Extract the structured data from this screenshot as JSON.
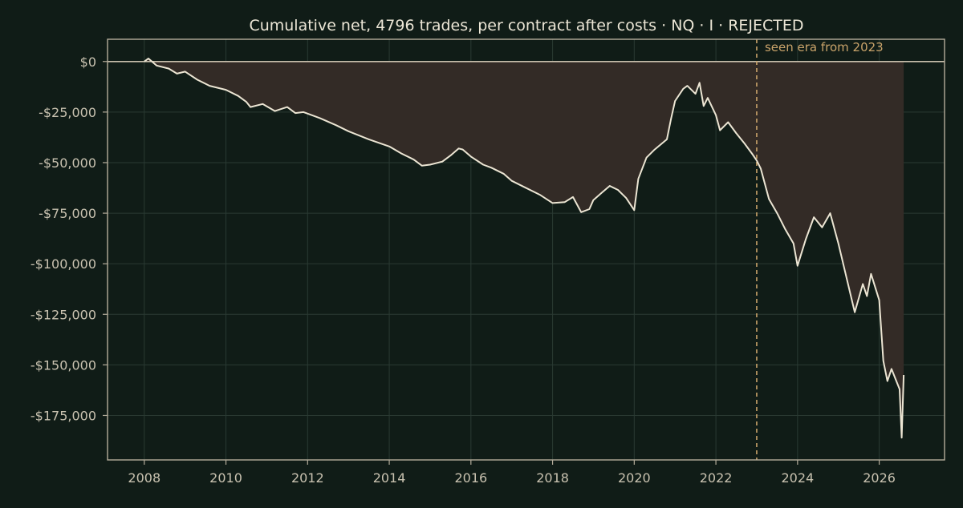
{
  "colors": {
    "background": "#101c17",
    "equity_line": "#ece5d3",
    "drawdown_fill": "#332b26",
    "era_marker": "#c9a36a",
    "grid": "#2a3a33"
  },
  "chart_data": {
    "type": "area",
    "title": "Cumulative net, 4796 trades, per contract after costs  ·  NQ · I · REJECTED",
    "xlabel": "",
    "ylabel": "",
    "x_unit": "year",
    "xlim": [
      2007.1,
      2027.6
    ],
    "ylim": [
      -197000,
      11000
    ],
    "x_ticks": [
      2008,
      2010,
      2012,
      2014,
      2016,
      2018,
      2020,
      2022,
      2024,
      2026
    ],
    "x_tick_labels": [
      "2008",
      "2010",
      "2012",
      "2014",
      "2016",
      "2018",
      "2020",
      "2022",
      "2024",
      "2026"
    ],
    "y_ticks": [
      0,
      -25000,
      -50000,
      -75000,
      -100000,
      -125000,
      -150000,
      -175000
    ],
    "y_tick_labels": [
      "$0",
      "-$25,000",
      "-$50,000",
      "-$75,000",
      "-$100,000",
      "-$125,000",
      "-$150,000",
      "-$175,000"
    ],
    "grid": true,
    "series": [
      {
        "x": [
          2008.0,
          2008.1,
          2008.3,
          2008.6,
          2008.8,
          2009.0,
          2009.3,
          2009.6,
          2010.0,
          2010.3,
          2010.5,
          2010.6,
          2010.9,
          2011.2,
          2011.5,
          2011.7,
          2011.9,
          2012.3,
          2012.7,
          2013.0,
          2013.5,
          2014.0,
          2014.3,
          2014.6,
          2014.8,
          2015.0,
          2015.3,
          2015.5,
          2015.7,
          2015.8,
          2016.0,
          2016.3,
          2016.5,
          2016.8,
          2017.0,
          2017.3,
          2017.7,
          2018.0,
          2018.3,
          2018.5,
          2018.7,
          2018.9,
          2019.0,
          2019.2,
          2019.4,
          2019.6,
          2019.8,
          2020.0,
          2020.1,
          2020.3,
          2020.5,
          2020.8,
          2020.9,
          2021.0,
          2021.2,
          2021.3,
          2021.5,
          2021.6,
          2021.7,
          2021.8,
          2022.0,
          2022.1,
          2022.3,
          2022.5,
          2022.7,
          2022.9,
          2023.0,
          2023.1,
          2023.3,
          2023.5,
          2023.7,
          2023.9,
          2024.0,
          2024.2,
          2024.4,
          2024.6,
          2024.8,
          2025.0,
          2025.2,
          2025.4,
          2025.6,
          2025.7,
          2025.8,
          2026.0,
          2026.1,
          2026.2,
          2026.3,
          2026.4,
          2026.5,
          2026.55,
          2026.6
        ],
        "values": [
          0,
          1500,
          -2000,
          -3500,
          -6000,
          -5000,
          -9000,
          -12000,
          -14000,
          -17000,
          -20000,
          -22500,
          -21000,
          -24500,
          -22500,
          -25500,
          -25000,
          -28000,
          -31500,
          -34500,
          -38500,
          -42000,
          -45500,
          -48500,
          -51500,
          -51000,
          -49500,
          -46500,
          -43000,
          -43500,
          -47000,
          -51000,
          -52500,
          -55500,
          -59000,
          -62000,
          -66000,
          -70000,
          -69500,
          -67000,
          -74500,
          -73000,
          -68500,
          -65000,
          -61500,
          -63500,
          -67500,
          -73500,
          -58000,
          -47500,
          -43500,
          -38500,
          -28500,
          -19500,
          -13500,
          -12000,
          -16000,
          -10500,
          -22000,
          -18000,
          -26500,
          -34000,
          -30000,
          -35500,
          -40500,
          -46000,
          -49000,
          -53000,
          -68000,
          -75000,
          -83000,
          -90000,
          -101000,
          -88000,
          -77000,
          -82000,
          -75000,
          -90000,
          -107000,
          -124000,
          -110000,
          -116000,
          -105000,
          -118000,
          -148000,
          -158000,
          -152000,
          -157000,
          -162000,
          -186000,
          -155000
        ]
      }
    ],
    "annotations": [
      {
        "type": "vline",
        "x": 2023.0,
        "label": "seen era from 2023"
      },
      {
        "type": "hline",
        "y": 0
      }
    ]
  }
}
